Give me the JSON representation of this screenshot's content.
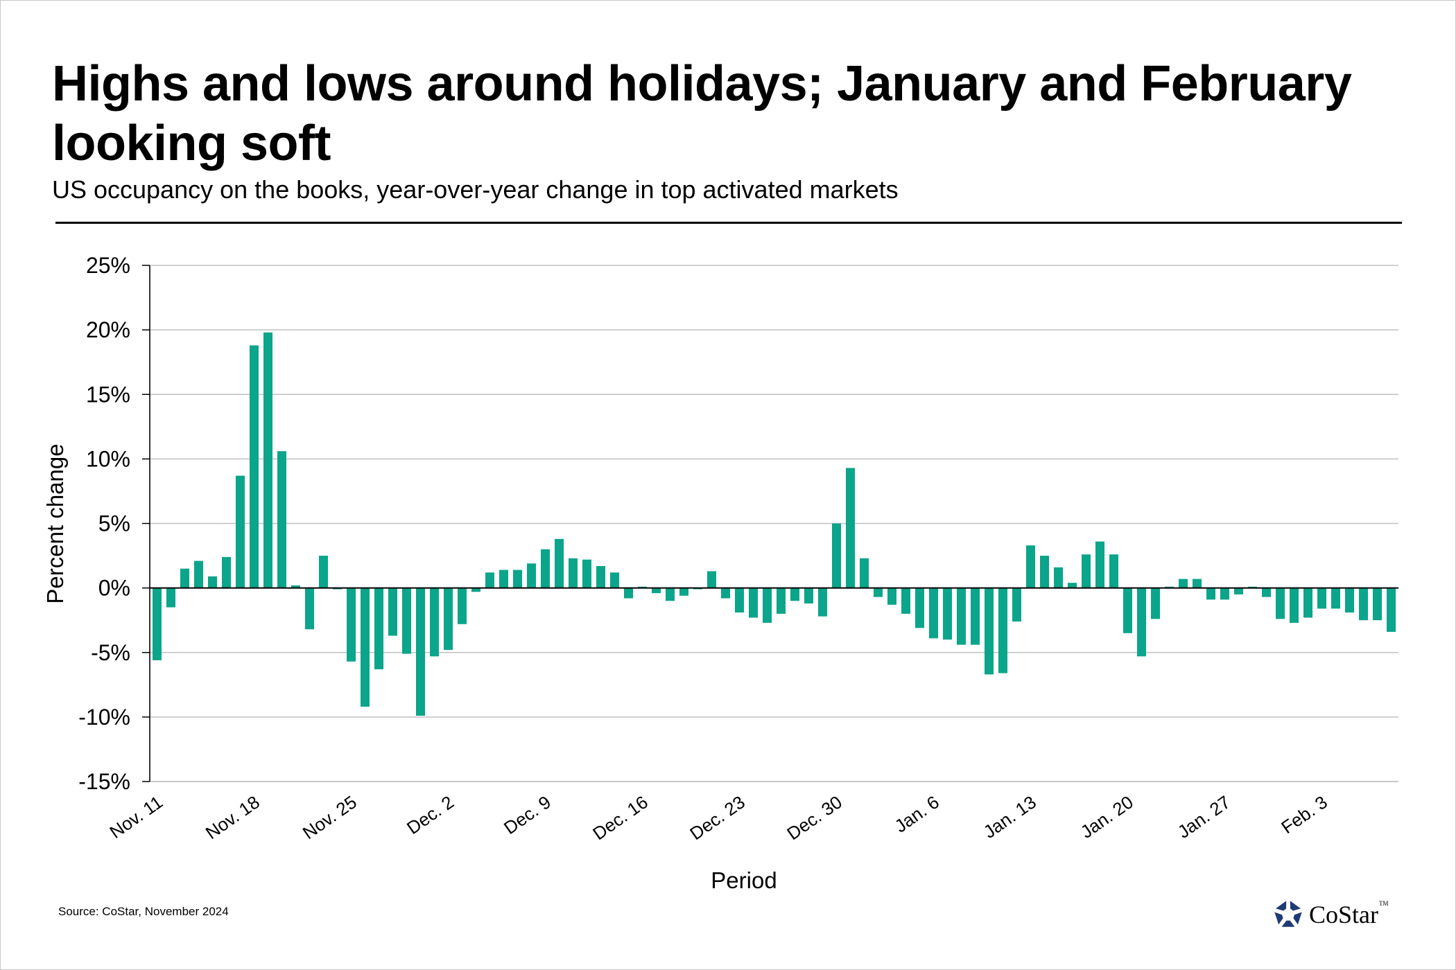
{
  "title": "Highs and lows around holidays; January and February looking soft",
  "subtitle": "US occupancy on the books, year-over-year change in top activated markets",
  "source": "Source: CoStar, November 2024",
  "logo": {
    "text": "CoStar",
    "tm": "TM",
    "icon": "costar-star-icon",
    "color": "#1f3b73"
  },
  "colors": {
    "bar": "#0aa58a",
    "grid": "#c0c0c0",
    "axis": "#000000"
  },
  "chart_data": {
    "type": "bar",
    "title": "Highs and lows around holidays; January and February looking soft",
    "subtitle": "US occupancy on the books, year-over-year change in top activated markets",
    "xlabel": "Period",
    "ylabel": "Percent change",
    "ylim": [
      -15,
      25
    ],
    "yticks": [
      25,
      20,
      15,
      10,
      5,
      0,
      -5,
      -10,
      -15
    ],
    "ytick_labels": [
      "25%",
      "20%",
      "15%",
      "10%",
      "5%",
      "0%",
      "-5%",
      "-10%",
      "-15%"
    ],
    "grid": true,
    "legend": "none",
    "x_tick_every": 7,
    "x_tick_labels": [
      "Nov. 11",
      "Nov. 18",
      "Nov. 25",
      "Dec. 2",
      "Dec. 9",
      "Dec. 16",
      "Dec. 23",
      "Dec. 30",
      "Jan. 6",
      "Jan. 13",
      "Jan. 20",
      "Jan. 27",
      "Feb. 3"
    ],
    "series": [
      {
        "name": "YoY change in occupancy on the books (%)",
        "values": [
          -5.6,
          -1.5,
          1.5,
          2.1,
          0.9,
          2.4,
          8.7,
          18.8,
          19.8,
          10.6,
          0.2,
          -3.2,
          2.5,
          -0.1,
          -5.7,
          -9.2,
          -6.3,
          -3.7,
          -5.1,
          -9.9,
          -5.3,
          -4.8,
          -2.8,
          -0.3,
          1.2,
          1.4,
          1.4,
          1.9,
          3.0,
          3.8,
          2.3,
          2.2,
          1.7,
          1.2,
          -0.8,
          0.1,
          -0.4,
          -1.0,
          -0.6,
          -0.1,
          1.3,
          -0.8,
          -1.9,
          -2.3,
          -2.7,
          -2.0,
          -1.0,
          -1.2,
          -2.2,
          5.0,
          9.3,
          2.3,
          -0.7,
          -1.3,
          -2.0,
          -3.1,
          -3.9,
          -4.0,
          -4.4,
          -4.4,
          -6.7,
          -6.6,
          -2.6,
          3.3,
          2.5,
          1.6,
          0.4,
          2.6,
          3.6,
          2.6,
          -3.5,
          -5.3,
          -2.4,
          0.1,
          0.7,
          0.7,
          -0.9,
          -0.9,
          -0.5,
          0.1,
          -0.7,
          -2.4,
          -2.7,
          -2.3,
          -1.6,
          -1.6,
          -1.9,
          -2.5,
          -2.5,
          -3.4
        ]
      }
    ]
  }
}
